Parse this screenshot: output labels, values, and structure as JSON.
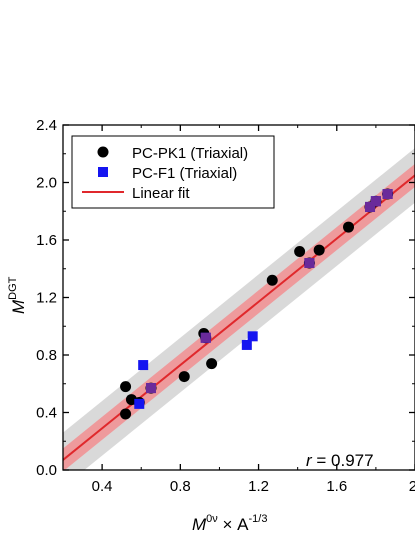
{
  "chart_data": {
    "type": "scatter",
    "xlabel": {
      "base": "M",
      "base_sup": "0ν",
      "rest": " × A",
      "rest_sup": "-1/3"
    },
    "ylabel": {
      "base": "M",
      "sup": "DGT"
    },
    "xlim": [
      0.2,
      2.0
    ],
    "ylim": [
      0.0,
      2.4
    ],
    "x_ticks": [
      0.4,
      0.8,
      1.2,
      1.6,
      2.0
    ],
    "x_tick_labels": [
      "0.4",
      "0.8",
      "1.2",
      "1.6",
      "2."
    ],
    "y_ticks": [
      0.0,
      0.4,
      0.8,
      1.2,
      1.6,
      2.0,
      2.4
    ],
    "y_tick_labels": [
      "0.0",
      "0.4",
      "0.8",
      "1.2",
      "1.6",
      "2.0",
      "2.4"
    ],
    "grid": false,
    "legend_position": "top-left",
    "series": [
      {
        "name": "PC-PK1 (Triaxial)",
        "marker": "circle",
        "color": "#000000",
        "points": [
          {
            "x": 0.52,
            "y": 0.58
          },
          {
            "x": 0.52,
            "y": 0.39
          },
          {
            "x": 0.55,
            "y": 0.49
          },
          {
            "x": 0.82,
            "y": 0.65
          },
          {
            "x": 0.92,
            "y": 0.95
          },
          {
            "x": 0.96,
            "y": 0.74
          },
          {
            "x": 1.27,
            "y": 1.32
          },
          {
            "x": 1.41,
            "y": 1.52
          },
          {
            "x": 1.51,
            "y": 1.53
          },
          {
            "x": 1.66,
            "y": 1.69
          },
          {
            "x": 1.46,
            "y": 1.44
          },
          {
            "x": 1.77,
            "y": 1.83
          },
          {
            "x": 1.8,
            "y": 1.87
          },
          {
            "x": 1.86,
            "y": 1.92
          },
          {
            "x": 0.59,
            "y": 0.47
          },
          {
            "x": 0.65,
            "y": 0.57
          },
          {
            "x": 0.93,
            "y": 0.92
          }
        ]
      },
      {
        "name": "PC-F1 (Triaxial)",
        "marker": "square",
        "color": "#1515f0",
        "points": [
          {
            "x": 0.61,
            "y": 0.73
          },
          {
            "x": 0.59,
            "y": 0.46
          },
          {
            "x": 0.65,
            "y": 0.57
          },
          {
            "x": 0.93,
            "y": 0.92
          },
          {
            "x": 1.14,
            "y": 0.87
          },
          {
            "x": 1.17,
            "y": 0.93
          },
          {
            "x": 1.46,
            "y": 1.44
          },
          {
            "x": 1.77,
            "y": 1.83
          },
          {
            "x": 1.8,
            "y": 1.87
          },
          {
            "x": 1.86,
            "y": 1.92
          }
        ]
      }
    ],
    "fit": {
      "name": "Linear fit",
      "color": "#e0282c",
      "slope": 1.1,
      "intercept": -0.15,
      "confidence_half_width": 0.08,
      "prediction_half_width": 0.19
    },
    "annotation": {
      "r_label": "r",
      "r_text": " = 0.977"
    }
  }
}
